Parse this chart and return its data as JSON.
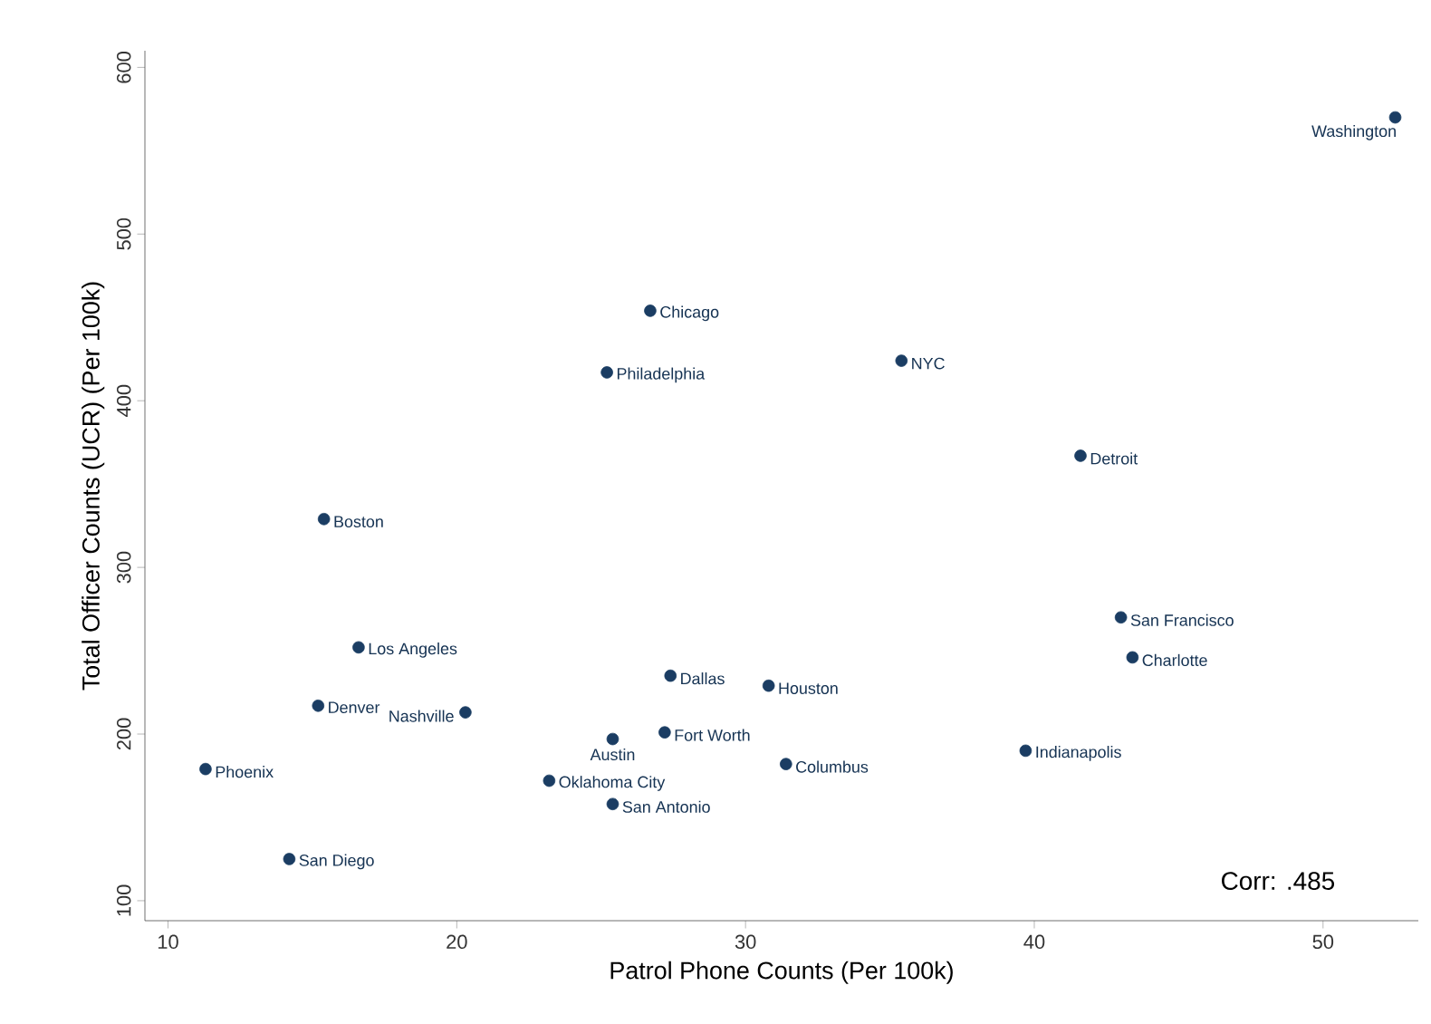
{
  "chart_data": {
    "type": "scatter",
    "xlabel": "Patrol Phone Counts (Per 100k)",
    "ylabel": "Total Officer Counts (UCR) (Per 100k)",
    "xlim": [
      9.2,
      53.3
    ],
    "ylim": [
      88,
      610
    ],
    "xticks": [
      10,
      20,
      30,
      40,
      50
    ],
    "yticks": [
      100,
      200,
      300,
      400,
      500,
      600
    ],
    "marker": "circle",
    "series": [
      {
        "color": "#1b3d63",
        "x": [
          52.5,
          26.7,
          25.2,
          35.4,
          41.6,
          15.4,
          43.0,
          43.4,
          16.6,
          27.4,
          30.8,
          15.2,
          20.3,
          27.2,
          25.4,
          39.7,
          31.4,
          11.3,
          23.2,
          25.4,
          14.2
        ],
        "values": [
          570,
          454,
          417,
          424,
          367,
          329,
          270,
          246,
          252,
          235,
          229,
          217,
          213,
          201,
          197,
          190,
          182,
          179,
          172,
          158,
          125
        ]
      }
    ],
    "annotations": [
      {
        "text": "Washington",
        "x": 52.5,
        "y": 570
      },
      {
        "text": "Chicago",
        "x": 26.7,
        "y": 454
      },
      {
        "text": "Philadelphia",
        "x": 25.2,
        "y": 417
      },
      {
        "text": "NYC",
        "x": 35.4,
        "y": 424
      },
      {
        "text": "Detroit",
        "x": 41.6,
        "y": 367
      },
      {
        "text": "Boston",
        "x": 15.4,
        "y": 329
      },
      {
        "text": "San Francisco",
        "x": 43.0,
        "y": 270
      },
      {
        "text": "Charlotte",
        "x": 43.4,
        "y": 246
      },
      {
        "text": "Los Angeles",
        "x": 16.6,
        "y": 252
      },
      {
        "text": "Dallas",
        "x": 27.4,
        "y": 235
      },
      {
        "text": "Houston",
        "x": 30.8,
        "y": 229
      },
      {
        "text": "Denver",
        "x": 15.2,
        "y": 217
      },
      {
        "text": "Nashville",
        "x": 20.3,
        "y": 213
      },
      {
        "text": "Fort Worth",
        "x": 27.2,
        "y": 201
      },
      {
        "text": "Austin",
        "x": 25.4,
        "y": 197
      },
      {
        "text": "Indianapolis",
        "x": 39.7,
        "y": 190
      },
      {
        "text": "Columbus",
        "x": 31.4,
        "y": 182
      },
      {
        "text": "Phoenix",
        "x": 11.3,
        "y": 179
      },
      {
        "text": "Oklahoma City",
        "x": 23.2,
        "y": 172
      },
      {
        "text": "San Antonio",
        "x": 25.4,
        "y": 158
      },
      {
        "text": "San Diego",
        "x": 14.2,
        "y": 125
      },
      "Corr: .485"
    ]
  }
}
